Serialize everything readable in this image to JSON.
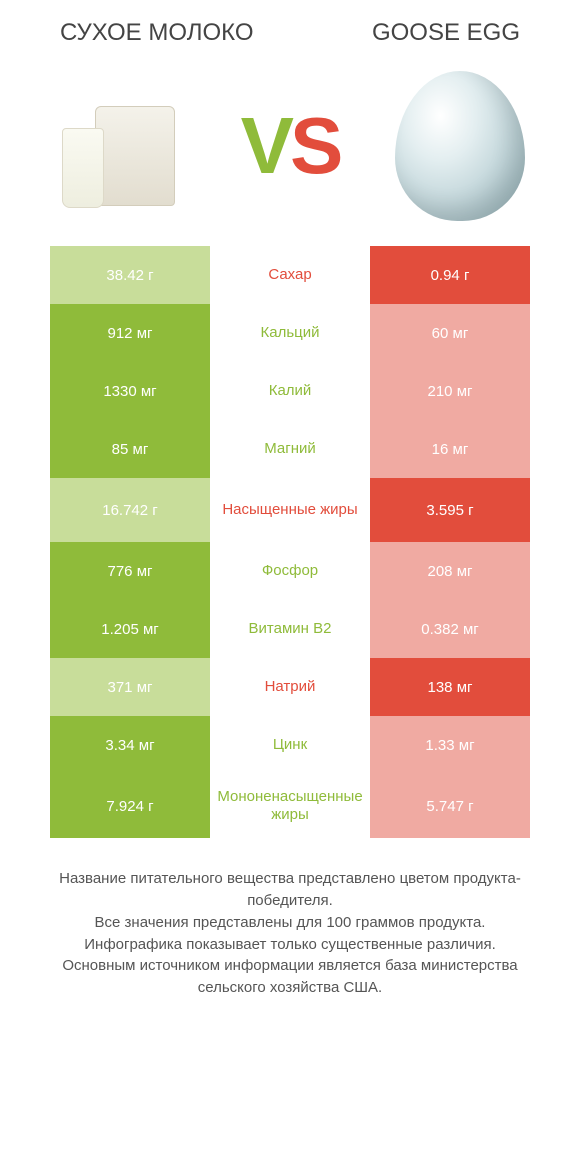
{
  "header": {
    "left_title": "СУХОЕ МОЛОКО",
    "right_title": "GOOSE EGG",
    "vs_v": "V",
    "vs_s": "S"
  },
  "colors": {
    "left_win": "#8fbb3a",
    "right_win": "#e24d3c",
    "left_lose": "#c8dd9a",
    "right_lose": "#f0aaa2",
    "background": "#ffffff"
  },
  "rows": [
    {
      "nutrient": "Сахар",
      "left": "38.42 г",
      "right": "0.94 г",
      "winner": "right"
    },
    {
      "nutrient": "Кальций",
      "left": "912 мг",
      "right": "60 мг",
      "winner": "left"
    },
    {
      "nutrient": "Калий",
      "left": "1330 мг",
      "right": "210 мг",
      "winner": "left"
    },
    {
      "nutrient": "Магний",
      "left": "85 мг",
      "right": "16 мг",
      "winner": "left"
    },
    {
      "nutrient": "Насыщенные жиры",
      "left": "16.742 г",
      "right": "3.595 г",
      "winner": "right",
      "tall": true
    },
    {
      "nutrient": "Фосфор",
      "left": "776 мг",
      "right": "208 мг",
      "winner": "left"
    },
    {
      "nutrient": "Витамин B2",
      "left": "1.205 мг",
      "right": "0.382 мг",
      "winner": "left"
    },
    {
      "nutrient": "Натрий",
      "left": "371 мг",
      "right": "138 мг",
      "winner": "right"
    },
    {
      "nutrient": "Цинк",
      "left": "3.34 мг",
      "right": "1.33 мг",
      "winner": "left"
    },
    {
      "nutrient": "Мононенасыщенные жиры",
      "left": "7.924 г",
      "right": "5.747 г",
      "winner": "left",
      "tall": true
    }
  ],
  "footer": {
    "line1": "Название питательного вещества представлено цветом продукта-победителя.",
    "line2": "Все значения представлены для 100 граммов продукта.",
    "line3": "Инфографика показывает только существенные различия.",
    "line4": "Основным источником информации является база министерства сельского хозяйства США."
  }
}
